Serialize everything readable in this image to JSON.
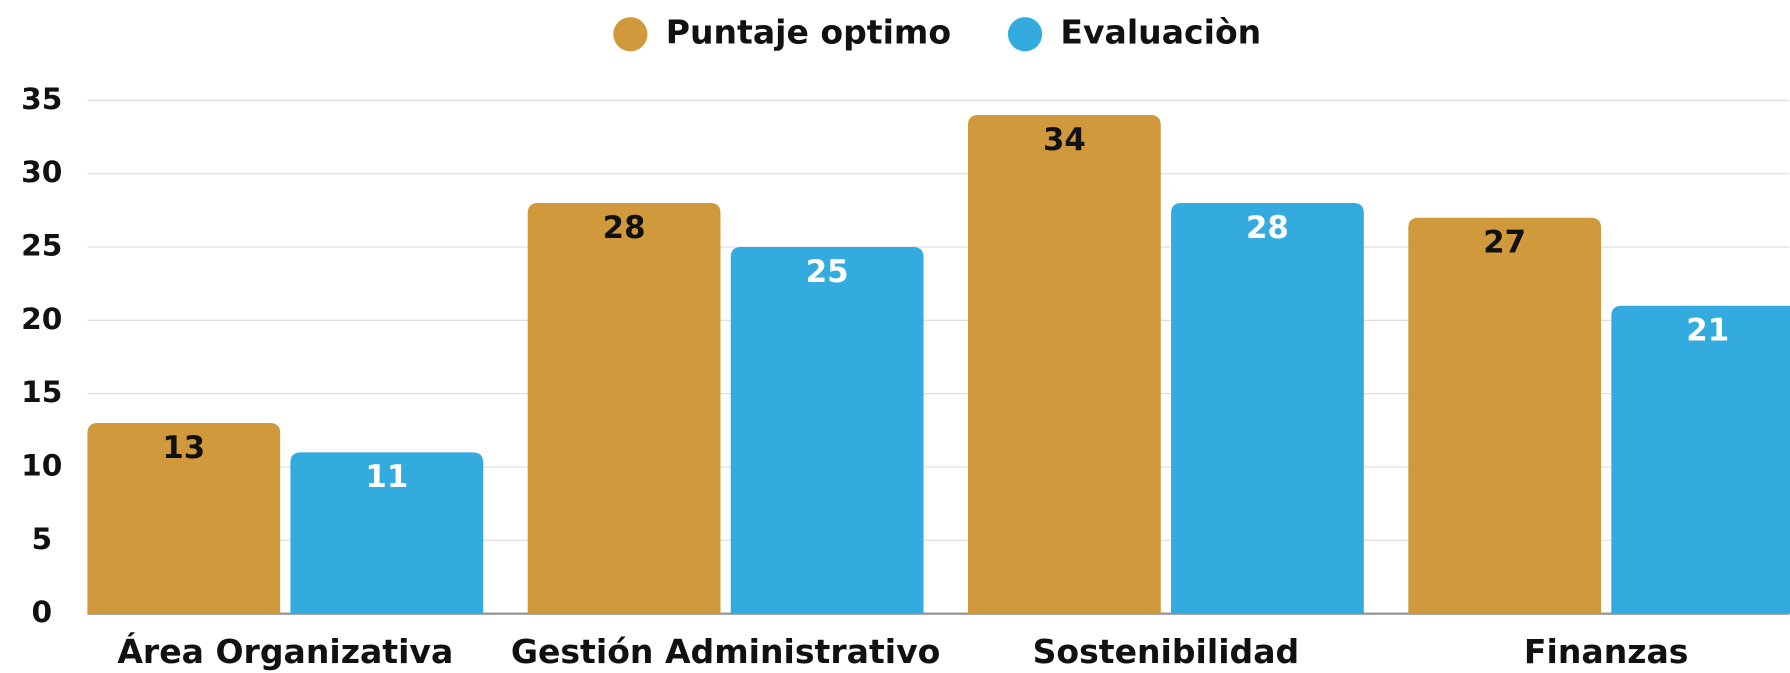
{
  "chart_data": {
    "type": "bar",
    "categories": [
      "Área Organizativa",
      "Gestión Administrativo",
      "Sostenibilidad",
      "Finanzas"
    ],
    "series": [
      {
        "name": "Puntaje optimo",
        "color": "#D09A3C",
        "values": [
          13,
          28,
          34,
          27
        ]
      },
      {
        "name": "Evaluaciòn",
        "color": "#33ABDF",
        "values": [
          11,
          25,
          28,
          21
        ]
      }
    ],
    "ylim": [
      0,
      35
    ],
    "yticks": [
      0,
      5,
      10,
      15,
      20,
      25,
      30,
      35
    ],
    "grid": true,
    "legend": "top"
  }
}
